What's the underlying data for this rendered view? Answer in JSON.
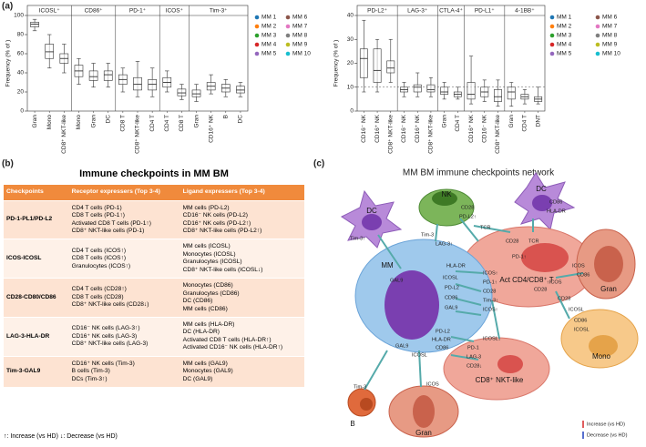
{
  "figure_labels": {
    "a": "(a)",
    "b": "(b)",
    "c": "(c)"
  },
  "chart_data": [
    {
      "type": "box",
      "y_label": "Frequency (% of )",
      "ylim": [
        0,
        100
      ],
      "yticks": [
        0,
        20,
        40,
        60,
        80,
        100
      ],
      "series": [
        {
          "name": "MM 1",
          "color": "#1f77b4"
        },
        {
          "name": "MM 2",
          "color": "#ff7f0e"
        },
        {
          "name": "MM 3",
          "color": "#2ca02c"
        },
        {
          "name": "MM 4",
          "color": "#d62728"
        },
        {
          "name": "MM 5",
          "color": "#9467bd"
        },
        {
          "name": "MM 6",
          "color": "#8c564b"
        },
        {
          "name": "MM 7",
          "color": "#e377c2"
        },
        {
          "name": "MM 8",
          "color": "#7f7f7f"
        },
        {
          "name": "MM 9",
          "color": "#bcbd22"
        },
        {
          "name": "MM 10",
          "color": "#17becf"
        }
      ],
      "panels": [
        {
          "title": "ICOSL⁺",
          "categories": [
            "Gran",
            "Mono",
            "CD8⁺ NKT-like"
          ],
          "boxes": [
            {
              "min": 84,
              "q1": 88,
              "median": 91,
              "q3": 93,
              "max": 96
            },
            {
              "min": 45,
              "q1": 55,
              "median": 62,
              "q3": 70,
              "max": 80
            },
            {
              "min": 40,
              "q1": 50,
              "median": 55,
              "q3": 60,
              "max": 70
            }
          ]
        },
        {
          "title": "CD86⁺",
          "categories": [
            "Mono",
            "Gran",
            "DC"
          ],
          "boxes": [
            {
              "min": 28,
              "q1": 36,
              "median": 42,
              "q3": 48,
              "max": 55
            },
            {
              "min": 25,
              "q1": 32,
              "median": 36,
              "q3": 42,
              "max": 50
            },
            {
              "min": 25,
              "q1": 32,
              "median": 38,
              "q3": 42,
              "max": 50
            }
          ]
        },
        {
          "title": "PD-1⁺",
          "categories": [
            "CD8 T",
            "CD8⁺ NKT-like",
            "CD4 T"
          ],
          "boxes": [
            {
              "min": 20,
              "q1": 28,
              "median": 33,
              "q3": 38,
              "max": 45
            },
            {
              "min": 15,
              "q1": 22,
              "median": 28,
              "q3": 35,
              "max": 52
            },
            {
              "min": 15,
              "q1": 22,
              "median": 28,
              "q3": 33,
              "max": 45
            }
          ]
        },
        {
          "title": "ICOS⁺",
          "categories": [
            "CD4 T",
            "CD8 T"
          ],
          "boxes": [
            {
              "min": 20,
              "q1": 25,
              "median": 30,
              "q3": 35,
              "max": 42
            },
            {
              "min": 12,
              "q1": 16,
              "median": 19,
              "q3": 23,
              "max": 28
            }
          ]
        },
        {
          "title": "Tim-3⁺",
          "categories": [
            "Gran",
            "CD16⁺ NK",
            "B",
            "DC"
          ],
          "boxes": [
            {
              "min": 10,
              "q1": 15,
              "median": 18,
              "q3": 22,
              "max": 28
            },
            {
              "min": 18,
              "q1": 22,
              "median": 26,
              "q3": 30,
              "max": 38
            },
            {
              "min": 15,
              "q1": 20,
              "median": 24,
              "q3": 28,
              "max": 33
            },
            {
              "min": 15,
              "q1": 19,
              "median": 22,
              "q3": 26,
              "max": 30
            }
          ]
        }
      ]
    },
    {
      "type": "box",
      "y_label": "Frequency (% of )",
      "ylim": [
        0,
        40
      ],
      "yticks": [
        0,
        10,
        20,
        30,
        40
      ],
      "ref_line": 10,
      "series": [
        {
          "name": "MM 1",
          "color": "#1f77b4"
        },
        {
          "name": "MM 2",
          "color": "#ff7f0e"
        },
        {
          "name": "MM 3",
          "color": "#2ca02c"
        },
        {
          "name": "MM 4",
          "color": "#d62728"
        },
        {
          "name": "MM 5",
          "color": "#9467bd"
        },
        {
          "name": "MM 6",
          "color": "#8c564b"
        },
        {
          "name": "MM 7",
          "color": "#e377c2"
        },
        {
          "name": "MM 8",
          "color": "#7f7f7f"
        },
        {
          "name": "MM 9",
          "color": "#bcbd22"
        },
        {
          "name": "MM 10",
          "color": "#17becf"
        }
      ],
      "panels": [
        {
          "title": "PD-L2⁺",
          "categories": [
            "CD16⁻ NK",
            "CD16⁺ NK",
            "CD8⁺ NKT-like"
          ],
          "boxes": [
            {
              "min": 8,
              "q1": 14,
              "median": 22,
              "q3": 26,
              "max": 38
            },
            {
              "min": 8,
              "q1": 12,
              "median": 17,
              "q3": 26,
              "max": 30
            },
            {
              "min": 12,
              "q1": 16,
              "median": 18,
              "q3": 21,
              "max": 30
            }
          ]
        },
        {
          "title": "LAG-3⁺",
          "categories": [
            "CD16⁻ NK",
            "CD16⁺ NK",
            "CD8⁺ NKT-like"
          ],
          "boxes": [
            {
              "min": 6,
              "q1": 8,
              "median": 9,
              "q3": 10,
              "max": 12
            },
            {
              "min": 6,
              "q1": 8,
              "median": 10,
              "q3": 11,
              "max": 16
            },
            {
              "min": 6,
              "q1": 8,
              "median": 9,
              "q3": 11,
              "max": 14
            }
          ]
        },
        {
          "title": "CTLA-4⁺",
          "categories": [
            "Gran",
            "CD4 T"
          ],
          "boxes": [
            {
              "min": 5,
              "q1": 7,
              "median": 8,
              "q3": 10,
              "max": 12
            },
            {
              "min": 5,
              "q1": 6,
              "median": 7,
              "q3": 8,
              "max": 10
            }
          ]
        },
        {
          "title": "PD-L1⁺",
          "categories": [
            "CD16⁺ NK",
            "CD16⁻ NK",
            "CD8⁺ NKT-like"
          ],
          "boxes": [
            {
              "min": 3,
              "q1": 5,
              "median": 7,
              "q3": 12,
              "max": 23
            },
            {
              "min": 4,
              "q1": 6,
              "median": 8,
              "q3": 10,
              "max": 13
            },
            {
              "min": 2,
              "q1": 4,
              "median": 6,
              "q3": 9,
              "max": 13
            }
          ]
        },
        {
          "title": "4-1BB⁺",
          "categories": [
            "Gran",
            "CD4 T",
            "DNT"
          ],
          "boxes": [
            {
              "min": 2,
              "q1": 5,
              "median": 8,
              "q3": 10,
              "max": 12
            },
            {
              "min": 3,
              "q1": 5,
              "median": 6,
              "q3": 7,
              "max": 9
            },
            {
              "min": 3,
              "q1": 4,
              "median": 5,
              "q3": 6,
              "max": 10
            }
          ]
        }
      ]
    }
  ],
  "table": {
    "title": "Immune checkpoints in MM BM",
    "header": [
      "Checkpoints",
      "Receptor expressers (Top 3-4)",
      "Ligand expressers (Top 3-4)"
    ],
    "rows": [
      [
        "PD-1-PL1/PD-L2",
        [
          "CD4 T cells (PD-1)",
          "CD8 T cells (PD-1↑)",
          "Activated CD8 T cells (PD-1↑)",
          "CD8⁺ NKT-like cells (PD-1)"
        ],
        [
          "MM cells (PD-L2)",
          "CD16⁻ NK cells (PD-L2)",
          "CD16⁺ NK cells (PD-L2↑)",
          "CD8⁺ NKT-like cells (PD-L2↑)"
        ]
      ],
      [
        "ICOS-ICOSL",
        [
          "CD4 T cells (ICOS↑)",
          "CD8 T cells (ICOS↑)",
          "Granulocytes (ICOS↑)"
        ],
        [
          "MM cells (ICOSL)",
          "Monocytes (ICOSL)",
          "Granulocytes (ICOSL)",
          "CD8⁺ NKT-like cells (ICOSL↓)"
        ]
      ],
      [
        "CD28-CD80/CD86",
        [
          "CD4 T cells (CD28↑)",
          "CD8 T cells (CD28)",
          "CD8⁺ NKT-like cells (CD28↓)"
        ],
        [
          "Monocytes (CD86)",
          "Granulocytes (CD86)",
          "DC (CD86)",
          "MM cells (CD86)"
        ]
      ],
      [
        "LAG-3-HLA-DR",
        [
          "CD16⁻ NK cells (LAG-3↑)",
          "CD16⁺ NK cells (LAG-3)",
          "CD8⁺ NKT-like cells (LAG-3)"
        ],
        [
          "MM cells (HLA-DR)",
          "DC (HLA-DR)",
          "Activated CD8 T cells (HLA-DR↑)",
          "Activated CD16⁻ NK cells (HLA-DR↑)"
        ]
      ],
      [
        "Tim-3-GAL9",
        [
          "CD16⁺ NK cells (Tim-3)",
          "B cells (Tim-3)",
          "DCs (Tim-3↑)"
        ],
        [
          "MM cells (GAL9)",
          "Monocytes (GAL9)",
          "DC (GAL9)"
        ]
      ]
    ],
    "footnote": "↑: Increase (vs HD)   ↓: Decrease (vs HD)"
  },
  "diagram": {
    "title": "MM BM immune checkpoints network",
    "cells": [
      "DC",
      "NK",
      "DC",
      "MM",
      "Act CD4/CD8⁺ T",
      "Gran",
      "Mono",
      "B",
      "Gran",
      "CD8⁺ NKT-like"
    ],
    "molecules": [
      "Tim-3↑",
      "GAL9",
      "Tim-3",
      "LAG-3↑",
      "CD28",
      "PD-L2↑",
      "TCR",
      "CD86",
      "HLA-DR",
      "CD28",
      "TCR",
      "PD-1↑",
      "HLA-DR",
      "ICOS↑",
      "ICOSL",
      "PD-1↑",
      "PD-L2",
      "CD28",
      "Tim-3↑",
      "CD86",
      "ICOS↑",
      "GAL9",
      "ICOS",
      "CD86",
      "↑ICOS",
      "CD28",
      "CD86",
      "ICOSL",
      "PD-L2",
      "HLA-DR",
      "CD86",
      "ICOSL",
      "GAL9",
      "PD-1",
      "LAG-3",
      "CD28↓",
      "ICOSL↓",
      "ICOS",
      "Tim-3",
      "CD28",
      "ICOSL"
    ],
    "legend": [
      "Increase (vs HD)",
      "Decrease (vs HD)"
    ]
  }
}
